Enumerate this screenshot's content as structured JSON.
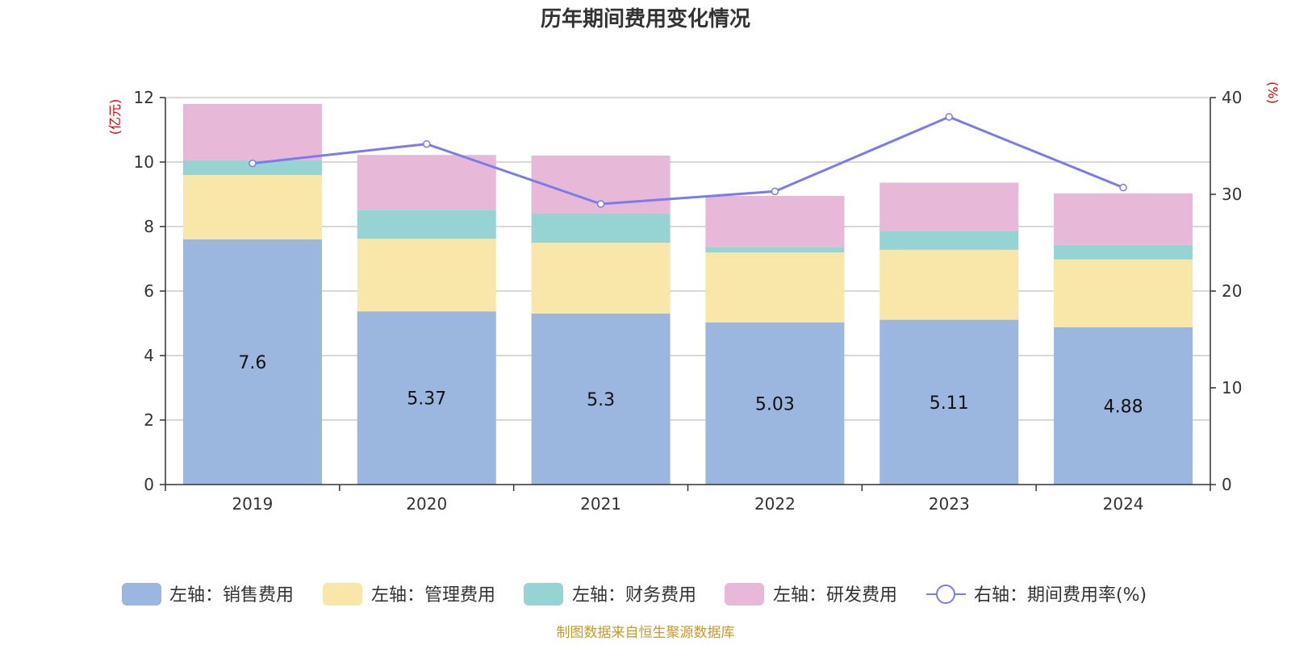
{
  "chart_data": {
    "type": "bar",
    "stacked": true,
    "title": "历年期间费用变化情况",
    "categories": [
      "2019",
      "2020",
      "2021",
      "2022",
      "2023",
      "2024"
    ],
    "left_axis": {
      "unit": "(亿元)",
      "ylim": [
        0,
        12
      ],
      "ticks": [
        "0",
        "2",
        "4",
        "6",
        "8",
        "10",
        "12"
      ]
    },
    "right_axis": {
      "unit": "(%)",
      "ylim": [
        0,
        40
      ],
      "ticks": [
        "0",
        "10",
        "20",
        "30",
        "40"
      ]
    },
    "series": [
      {
        "name": "左轴：销售费用",
        "axis": "left",
        "color": "#9bb7e0",
        "values": [
          7.6,
          5.37,
          5.3,
          5.03,
          5.11,
          4.88
        ],
        "labels": [
          "7.6",
          "5.37",
          "5.3",
          "5.03",
          "5.11",
          "4.88"
        ]
      },
      {
        "name": "左轴：管理费用",
        "axis": "left",
        "color": "#f8e7a9",
        "values": [
          2.0,
          2.25,
          2.2,
          2.17,
          2.17,
          2.1
        ]
      },
      {
        "name": "左轴：财务费用",
        "axis": "left",
        "color": "#96d4d4",
        "values": [
          0.45,
          0.9,
          0.9,
          0.17,
          0.58,
          0.45
        ]
      },
      {
        "name": "左轴：研发费用",
        "axis": "left",
        "color": "#e8b8d8",
        "values": [
          1.75,
          1.7,
          1.8,
          1.58,
          1.5,
          1.6
        ]
      }
    ],
    "line_series": {
      "name": "右轴：期间费用率(%)",
      "axis": "right",
      "color": "#7b7bea",
      "values": [
        33.2,
        35.2,
        29.0,
        30.3,
        38.0,
        30.7
      ]
    },
    "grid": true,
    "legend_position": "bottom"
  },
  "source_note": "制图数据来自恒生聚源数据库"
}
